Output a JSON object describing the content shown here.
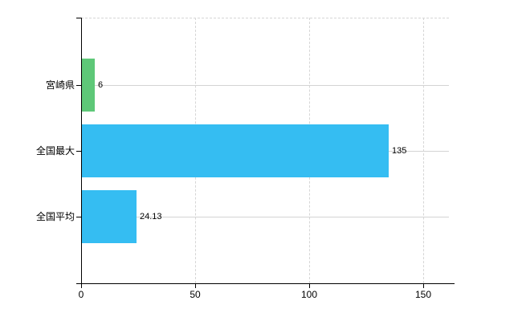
{
  "chart_data": {
    "type": "bar",
    "orientation": "horizontal",
    "title": "",
    "xlabel": "",
    "ylabel": "",
    "categories": [
      "宮崎県",
      "全国最大",
      "全国平均"
    ],
    "values": [
      6,
      135,
      24.13
    ],
    "value_labels": [
      "6",
      "135",
      "24.13"
    ],
    "bar_colors": [
      "#5ec878",
      "#35bdf2",
      "#35bdf2"
    ],
    "x_ticks": [
      0,
      50,
      100,
      150
    ],
    "x_tick_labels": [
      "0",
      "50",
      "100",
      "150"
    ],
    "xlim": [
      0,
      161.3
    ],
    "grid": true,
    "legend": false,
    "gridline_style": {
      "vertical": "dashed",
      "horizontal": "solid"
    },
    "colors": {
      "background": "#ffffff",
      "axis": "#000000",
      "grid": "#d6d6d6",
      "text": "#000000"
    }
  }
}
